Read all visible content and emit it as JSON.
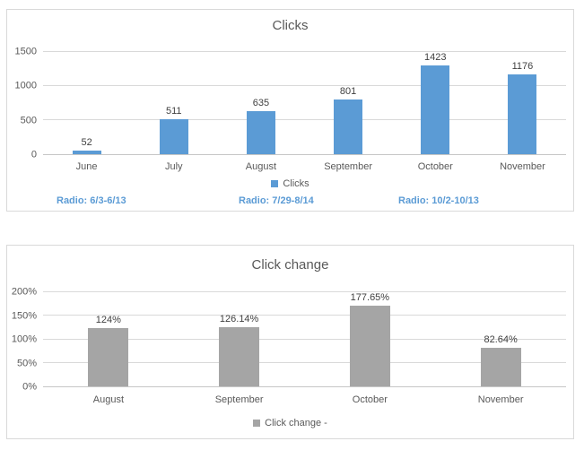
{
  "colors": {
    "blue": "#5B9BD5",
    "gray": "#A5A5A5",
    "gridline": "#D9D9D9",
    "axis_text": "#595959",
    "data_label_text": "#3F3F3F",
    "card_border": "#D9D9D9",
    "annotation_blue": "#5B9BD5"
  },
  "chart_data": [
    {
      "type": "bar",
      "title": "Clicks",
      "categories": [
        "June",
        "July",
        "August",
        "September",
        "October",
        "November"
      ],
      "values": [
        52,
        511,
        635,
        801,
        1423,
        1176
      ],
      "data_labels": [
        "52",
        "511",
        "635",
        "801",
        "1423",
        "1176"
      ],
      "ylim": [
        0,
        1500
      ],
      "yticks": [
        "0",
        "500",
        "1000",
        "1500"
      ],
      "grid": true,
      "bar_color": "#5B9BD5",
      "legend": {
        "label": "Clicks",
        "color": "#5B9BD5",
        "position": "bottom"
      },
      "annotations": [
        {
          "text": "Radio: 6/3-6/13",
          "color": "#5B9BD5"
        },
        {
          "text": "Radio: 7/29-8/14",
          "color": "#5B9BD5"
        },
        {
          "text": "Radio: 10/2-10/13",
          "color": "#5B9BD5"
        }
      ]
    },
    {
      "type": "bar",
      "title": "Click change",
      "categories": [
        "August",
        "September",
        "October",
        "November"
      ],
      "values": [
        124,
        126.14,
        177.65,
        82.64
      ],
      "data_labels": [
        "124%",
        "126.14%",
        "177.65%",
        "82.64%"
      ],
      "ylim": [
        0,
        200
      ],
      "yticks": [
        "0%",
        "50%",
        "100%",
        "150%",
        "200%"
      ],
      "grid": true,
      "bar_color": "#A5A5A5",
      "legend": {
        "label": "Click change -",
        "color": "#A5A5A5",
        "position": "bottom"
      },
      "annotations": []
    }
  ]
}
